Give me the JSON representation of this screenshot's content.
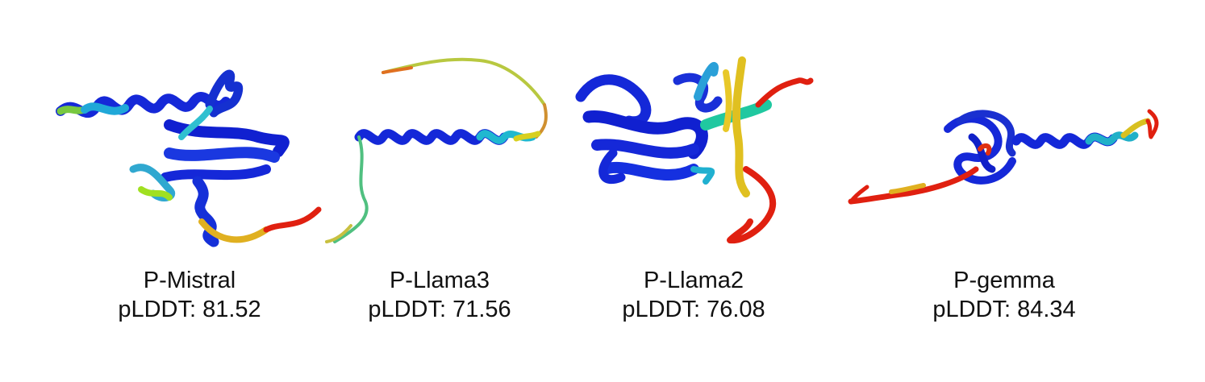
{
  "panels": [
    {
      "model": "P-Mistral",
      "score_label": "pLDDT: 81.52",
      "plddt": 81.52
    },
    {
      "model": "P-Llama3",
      "score_label": "pLDDT: 71.56",
      "plddt": 71.56
    },
    {
      "model": "P-Llama2",
      "score_label": "pLDDT: 76.08",
      "plddt": 76.08
    },
    {
      "model": "P-gemma",
      "score_label": "pLDDT: 84.34",
      "plddt": 84.34
    }
  ],
  "colors": {
    "very_high_confidence": "#1020d8",
    "high_confidence": "#20b0d0",
    "medium_confidence": "#f0d020",
    "low_confidence": "#e02010",
    "text": "#111111"
  }
}
